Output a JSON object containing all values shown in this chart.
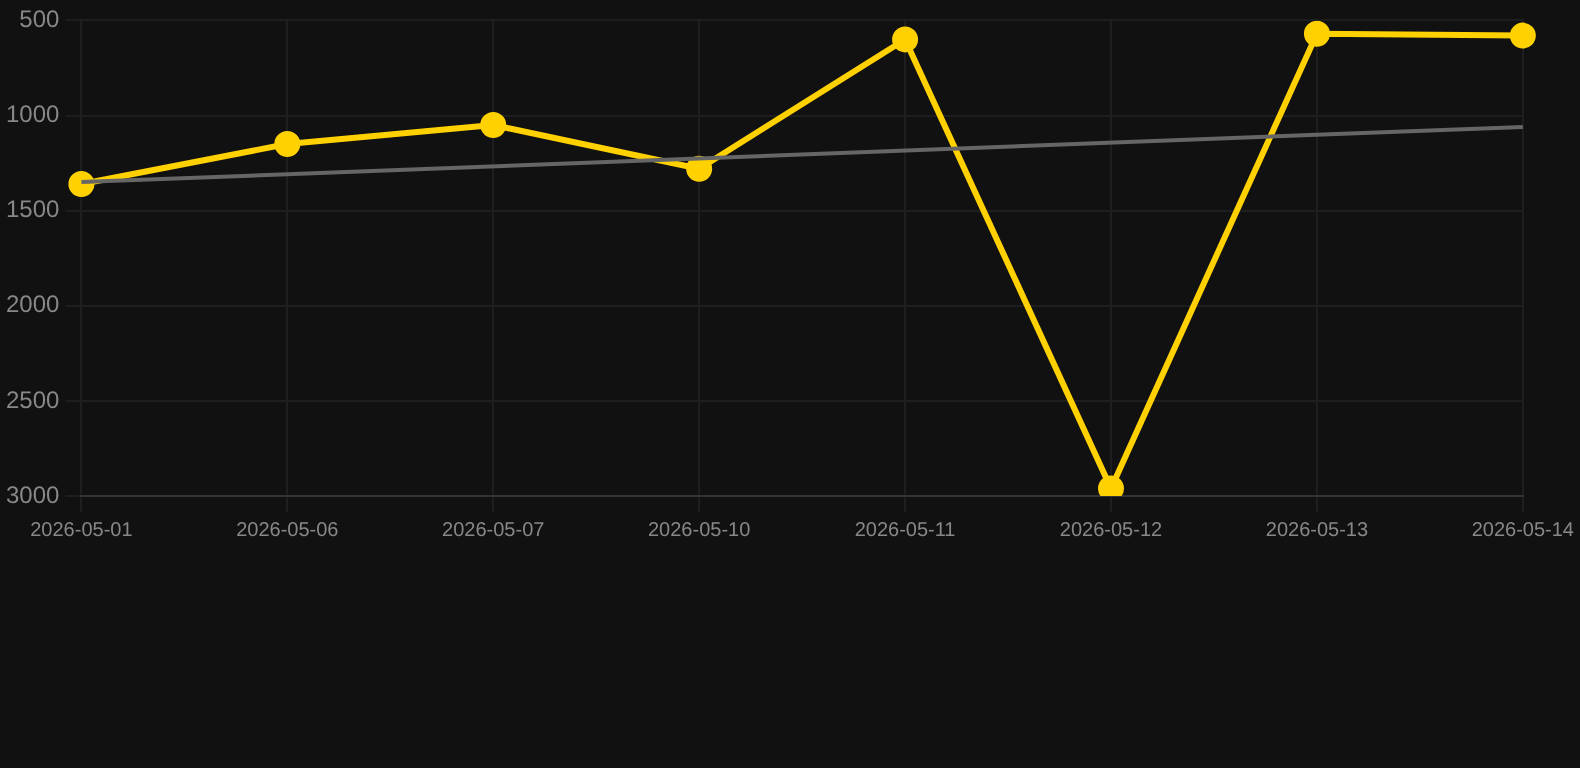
{
  "chart_data": {
    "type": "line",
    "categories": [
      "2026-05-01",
      "2026-05-06",
      "2026-05-07",
      "2026-05-10",
      "2026-05-11",
      "2026-05-12",
      "2026-05-13",
      "2026-05-14"
    ],
    "series": [
      {
        "color": "#ffd100",
        "values": [
          1360,
          1150,
          1050,
          1280,
          600,
          2960,
          570,
          580
        ],
        "marker": "circle"
      },
      {
        "type": "line",
        "color": "#666666",
        "values": [
          1350,
          null,
          null,
          null,
          null,
          null,
          null,
          1060
        ],
        "marker": "none"
      }
    ],
    "ylim": [
      3000,
      500
    ],
    "yticks": [
      500,
      1000,
      1500,
      2000,
      2500,
      3000
    ],
    "grid": true,
    "legend": false,
    "line_style": "solid"
  }
}
